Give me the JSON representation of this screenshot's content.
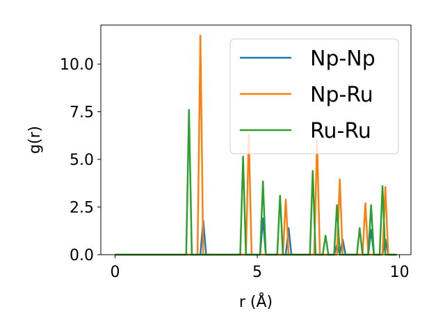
{
  "chart_data": {
    "type": "line",
    "title": "",
    "xlabel": "r (Å)",
    "ylabel": "g(r)",
    "xlim": [
      -0.5,
      10.4
    ],
    "ylim": [
      0,
      12.05
    ],
    "xticks": [
      0,
      5,
      10
    ],
    "xtick_labels": [
      "0",
      "5",
      "10"
    ],
    "yticks": [
      0.0,
      2.5,
      5.0,
      7.5,
      10.0
    ],
    "ytick_labels": [
      "0.0",
      "2.5",
      "5.0",
      "7.5",
      "10.0"
    ],
    "grid": false,
    "legend_position": "upper-right",
    "colors": {
      "Np-Np": "#1f77b4",
      "Np-Ru": "#ff7f0e",
      "Ru-Ru": "#2ca02c"
    },
    "series": [
      {
        "name": "Np-Np",
        "peaks": [
          [
            3.1,
            1.8
          ],
          [
            5.2,
            1.9
          ],
          [
            6.1,
            1.4
          ],
          [
            7.8,
            0.5
          ],
          [
            8.0,
            0.8
          ],
          [
            9.0,
            1.3
          ],
          [
            9.5,
            0.8
          ]
        ]
      },
      {
        "name": "Np-Ru",
        "peaks": [
          [
            3.0,
            11.5
          ],
          [
            4.7,
            6.3
          ],
          [
            6.0,
            2.9
          ],
          [
            7.1,
            6.0
          ],
          [
            7.9,
            3.95
          ],
          [
            8.8,
            2.7
          ],
          [
            9.5,
            3.55
          ]
        ]
      },
      {
        "name": "Ru-Ru",
        "peaks": [
          [
            2.6,
            7.6
          ],
          [
            4.5,
            5.15
          ],
          [
            5.2,
            3.85
          ],
          [
            5.8,
            3.1
          ],
          [
            6.95,
            4.4
          ],
          [
            7.4,
            1.0
          ],
          [
            7.8,
            2.6
          ],
          [
            8.6,
            1.4
          ],
          [
            9.0,
            2.6
          ],
          [
            9.4,
            3.6
          ]
        ]
      }
    ]
  }
}
